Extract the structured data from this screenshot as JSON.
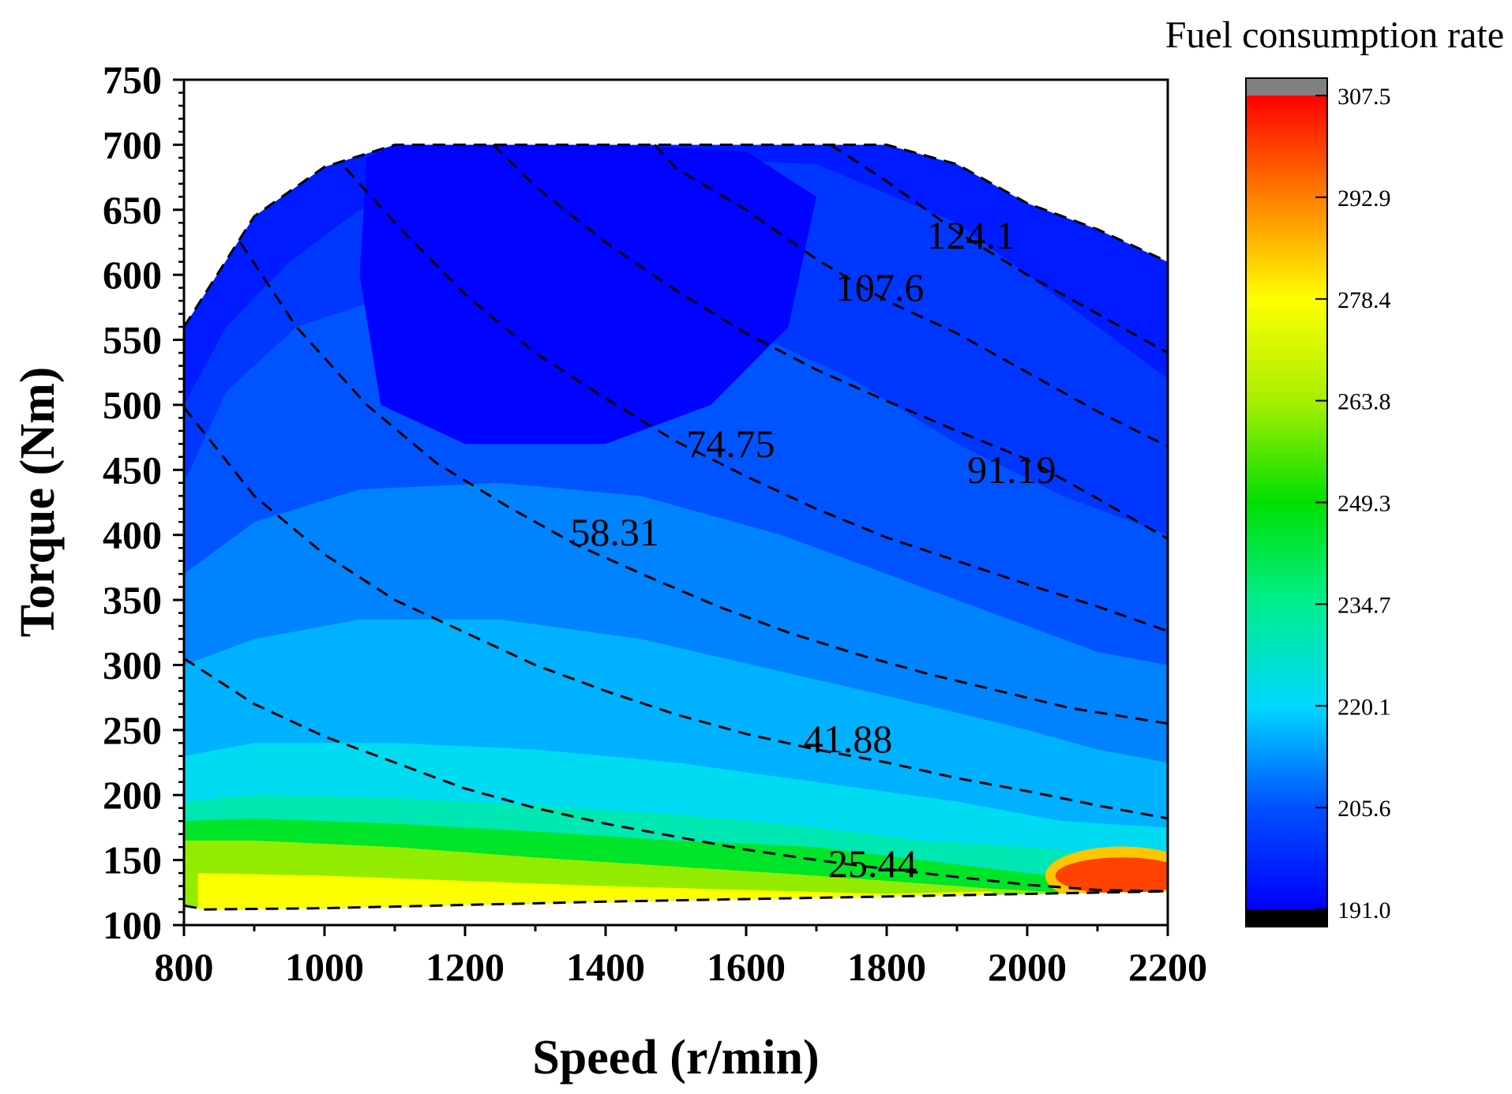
{
  "chart_data": {
    "type": "heatmap",
    "subtype": "contour map with overlaid dashed power contours",
    "xlabel": "Speed (r/min)",
    "ylabel": "Torque (Nm)",
    "xlim": [
      800,
      2200
    ],
    "ylim": [
      100,
      750
    ],
    "x_ticks": [
      800,
      1000,
      1200,
      1400,
      1600,
      1800,
      2000,
      2200
    ],
    "y_ticks": [
      100,
      150,
      200,
      250,
      300,
      350,
      400,
      450,
      500,
      550,
      600,
      650,
      700,
      750
    ],
    "colorbar": {
      "title": "Fuel consumption rate",
      "min": 191.0,
      "max": 307.5,
      "ticks": [
        "191.0",
        "205.6",
        "220.1",
        "234.7",
        "249.3",
        "263.8",
        "278.4",
        "292.9",
        "307.5"
      ],
      "colors": [
        "#0000ff",
        "#0050ff",
        "#00d8ff",
        "#00ee90",
        "#00e000",
        "#a8ee00",
        "#ffff00",
        "#ff8000",
        "#ff0000"
      ],
      "under_color": "#000000",
      "over_color": "#808080"
    },
    "boundary_top": [
      [
        800,
        560
      ],
      [
        900,
        645
      ],
      [
        1000,
        683
      ],
      [
        1100,
        700
      ],
      [
        1800,
        700
      ],
      [
        1900,
        685
      ],
      [
        2000,
        655
      ],
      [
        2100,
        635
      ],
      [
        2200,
        610
      ]
    ],
    "boundary_bottom": [
      [
        800,
        115
      ],
      [
        830,
        112
      ],
      [
        1000,
        113
      ],
      [
        1400,
        118
      ],
      [
        1800,
        122
      ],
      [
        2000,
        124
      ],
      [
        2200,
        126
      ]
    ],
    "heat_bands": [
      {
        "value": 196,
        "top": [
          [
            800,
            560
          ],
          [
            900,
            645
          ],
          [
            1000,
            683
          ],
          [
            1100,
            700
          ],
          [
            1800,
            700
          ],
          [
            1900,
            685
          ],
          [
            2000,
            655
          ],
          [
            2100,
            635
          ],
          [
            2200,
            610
          ]
        ]
      },
      {
        "value": 201,
        "top": [
          [
            800,
            500
          ],
          [
            860,
            560
          ],
          [
            950,
            610
          ],
          [
            1050,
            650
          ],
          [
            1200,
            680
          ],
          [
            1500,
            690
          ],
          [
            1700,
            685
          ],
          [
            1900,
            640
          ],
          [
            2000,
            600
          ],
          [
            2100,
            560
          ],
          [
            2200,
            520
          ]
        ]
      },
      {
        "value": 206,
        "top": [
          [
            800,
            440
          ],
          [
            860,
            510
          ],
          [
            960,
            560
          ],
          [
            1100,
            585
          ],
          [
            1300,
            590
          ],
          [
            1550,
            570
          ],
          [
            1750,
            520
          ],
          [
            1900,
            470
          ],
          [
            2050,
            430
          ],
          [
            2200,
            400
          ]
        ]
      },
      {
        "value": 211,
        "top": [
          [
            800,
            370
          ],
          [
            900,
            410
          ],
          [
            1050,
            435
          ],
          [
            1250,
            440
          ],
          [
            1450,
            430
          ],
          [
            1650,
            400
          ],
          [
            1850,
            360
          ],
          [
            2000,
            330
          ],
          [
            2100,
            310
          ],
          [
            2200,
            300
          ]
        ]
      },
      {
        "value": 216,
        "top": [
          [
            800,
            300
          ],
          [
            900,
            320
          ],
          [
            1050,
            335
          ],
          [
            1250,
            335
          ],
          [
            1450,
            320
          ],
          [
            1650,
            295
          ],
          [
            1850,
            270
          ],
          [
            2000,
            250
          ],
          [
            2100,
            235
          ],
          [
            2200,
            225
          ]
        ]
      },
      {
        "value": 222,
        "top": [
          [
            800,
            230
          ],
          [
            900,
            240
          ],
          [
            1100,
            240
          ],
          [
            1300,
            235
          ],
          [
            1500,
            225
          ],
          [
            1700,
            210
          ],
          [
            1900,
            195
          ],
          [
            2050,
            180
          ],
          [
            2200,
            175
          ]
        ]
      },
      {
        "value": 230,
        "top": [
          [
            800,
            195
          ],
          [
            900,
            200
          ],
          [
            1100,
            198
          ],
          [
            1300,
            192
          ],
          [
            1500,
            185
          ],
          [
            1700,
            175
          ],
          [
            1850,
            165
          ],
          [
            2000,
            160
          ],
          [
            2200,
            150
          ]
        ]
      },
      {
        "value": 245,
        "top": [
          [
            800,
            180
          ],
          [
            900,
            182
          ],
          [
            1100,
            178
          ],
          [
            1300,
            172
          ],
          [
            1500,
            165
          ],
          [
            1700,
            160
          ],
          [
            1850,
            150
          ],
          [
            2000,
            140
          ],
          [
            2100,
            135
          ],
          [
            2200,
            130
          ]
        ]
      },
      {
        "value": 262,
        "top": [
          [
            800,
            165
          ],
          [
            900,
            165
          ],
          [
            1100,
            160
          ],
          [
            1300,
            152
          ],
          [
            1500,
            145
          ],
          [
            1700,
            138
          ],
          [
            1850,
            132
          ],
          [
            1950,
            128
          ],
          [
            2050,
            125
          ]
        ]
      },
      {
        "value": 278,
        "top": [
          [
            820,
            140
          ],
          [
            1000,
            138
          ],
          [
            1200,
            134
          ],
          [
            1400,
            130
          ],
          [
            1600,
            127
          ],
          [
            1800,
            124
          ],
          [
            1950,
            126
          ]
        ]
      }
    ],
    "hot_spot": {
      "value": 300,
      "center": [
        2135,
        138
      ],
      "rx": 95,
      "ry": 14
    },
    "cool_region": {
      "value": 191.5,
      "outline": [
        [
          1100,
          700
        ],
        [
          1200,
          700
        ],
        [
          1400,
          700
        ],
        [
          1600,
          695
        ],
        [
          1700,
          660
        ],
        [
          1660,
          560
        ],
        [
          1550,
          500
        ],
        [
          1400,
          470
        ],
        [
          1280,
          470
        ],
        [
          1200,
          470
        ],
        [
          1080,
          500
        ],
        [
          1050,
          600
        ],
        [
          1060,
          690
        ]
      ]
    },
    "power_contours": [
      {
        "label": "25.44",
        "label_pos": [
          1780,
          137
        ],
        "points": [
          [
            800,
            305
          ],
          [
            900,
            270
          ],
          [
            1000,
            245
          ],
          [
            1100,
            225
          ],
          [
            1200,
            205
          ],
          [
            1300,
            190
          ],
          [
            1400,
            178
          ],
          [
            1500,
            168
          ],
          [
            1600,
            158
          ],
          [
            1700,
            150
          ],
          [
            1800,
            143
          ],
          [
            1900,
            137
          ],
          [
            2000,
            131
          ],
          [
            2100,
            127
          ],
          [
            2200,
            126
          ]
        ]
      },
      {
        "label": "41.88",
        "label_pos": [
          1745,
          233
        ],
        "points": [
          [
            800,
            498
          ],
          [
            900,
            430
          ],
          [
            1000,
            385
          ],
          [
            1100,
            350
          ],
          [
            1200,
            325
          ],
          [
            1300,
            300
          ],
          [
            1400,
            280
          ],
          [
            1500,
            262
          ],
          [
            1600,
            247
          ],
          [
            1700,
            235
          ],
          [
            1800,
            225
          ],
          [
            1900,
            213
          ],
          [
            2000,
            203
          ],
          [
            2100,
            192
          ],
          [
            2200,
            182
          ]
        ]
      },
      {
        "label": "58.31",
        "label_pos": [
          1413,
          392
        ],
        "points": [
          [
            880,
            625
          ],
          [
            960,
            560
          ],
          [
            1060,
            500
          ],
          [
            1160,
            455
          ],
          [
            1260,
            422
          ],
          [
            1360,
            392
          ],
          [
            1460,
            368
          ],
          [
            1560,
            345
          ],
          [
            1660,
            325
          ],
          [
            1760,
            308
          ],
          [
            1860,
            293
          ],
          [
            1960,
            280
          ],
          [
            2060,
            267
          ],
          [
            2200,
            255
          ]
        ]
      },
      {
        "label": "74.75",
        "label_pos": [
          1578,
          460
        ],
        "points": [
          [
            1030,
            682
          ],
          [
            1100,
            640
          ],
          [
            1200,
            585
          ],
          [
            1300,
            540
          ],
          [
            1400,
            505
          ],
          [
            1500,
            472
          ],
          [
            1600,
            445
          ],
          [
            1700,
            420
          ],
          [
            1800,
            398
          ],
          [
            1900,
            380
          ],
          [
            2000,
            362
          ],
          [
            2100,
            345
          ],
          [
            2200,
            326
          ]
        ]
      },
      {
        "label": "91.19",
        "label_pos": [
          1978,
          440
        ],
        "points": [
          [
            1240,
            700
          ],
          [
            1300,
            668
          ],
          [
            1400,
            625
          ],
          [
            1500,
            588
          ],
          [
            1600,
            555
          ],
          [
            1700,
            527
          ],
          [
            1800,
            503
          ],
          [
            1900,
            480
          ],
          [
            2000,
            458
          ],
          [
            2100,
            428
          ],
          [
            2200,
            397
          ]
        ]
      },
      {
        "label": "107.6",
        "label_pos": [
          1790,
          580
        ],
        "points": [
          [
            1470,
            700
          ],
          [
            1500,
            682
          ],
          [
            1600,
            650
          ],
          [
            1700,
            612
          ],
          [
            1800,
            580
          ],
          [
            1900,
            555
          ],
          [
            2000,
            525
          ],
          [
            2100,
            495
          ],
          [
            2200,
            468
          ]
        ]
      },
      {
        "label": "124.1",
        "label_pos": [
          1920,
          620
        ],
        "points": [
          [
            1720,
            700
          ],
          [
            1800,
            672
          ],
          [
            1900,
            633
          ],
          [
            2000,
            600
          ],
          [
            2100,
            570
          ],
          [
            2200,
            540
          ]
        ]
      }
    ]
  }
}
